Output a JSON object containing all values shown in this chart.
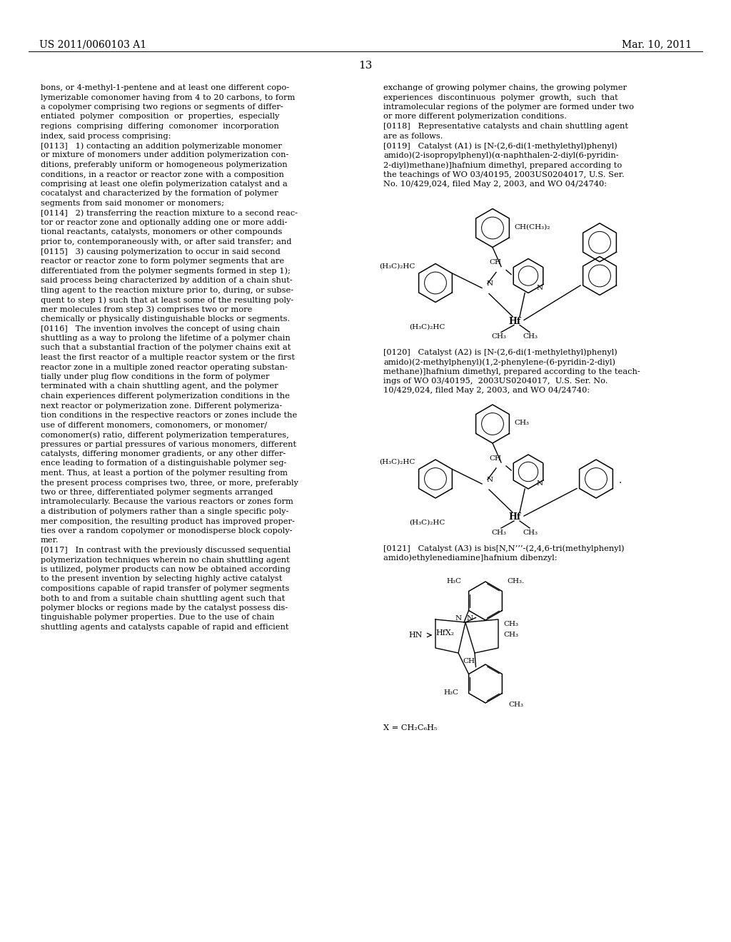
{
  "page_number": "13",
  "header_left": "US 2011/0060103 A1",
  "header_right": "Mar. 10, 2011",
  "background_color": "#ffffff",
  "left_column_lines": [
    "bons, or 4-methyl-1-pentene and at least one different copo-",
    "lymerizable comonomer having from 4 to 20 carbons, to form",
    "a copolymer comprising two regions or segments of differ-",
    "entiated  polymer  composition  or  properties,  especially",
    "regions  comprising  differing  comonomer  incorporation",
    "index, said process comprising:",
    "[0113]   1) contacting an addition polymerizable monomer",
    "or mixture of monomers under addition polymerization con-",
    "ditions, preferably uniform or homogeneous polymerization",
    "conditions, in a reactor or reactor zone with a composition",
    "comprising at least one olefin polymerization catalyst and a",
    "cocatalyst and characterized by the formation of polymer",
    "segments from said monomer or monomers;",
    "[0114]   2) transferring the reaction mixture to a second reac-",
    "tor or reactor zone and optionally adding one or more addi-",
    "tional reactants, catalysts, monomers or other compounds",
    "prior to, contemporaneously with, or after said transfer; and",
    "[0115]   3) causing polymerization to occur in said second",
    "reactor or reactor zone to form polymer segments that are",
    "differentiated from the polymer segments formed in step 1);",
    "said process being characterized by addition of a chain shut-",
    "tling agent to the reaction mixture prior to, during, or subse-",
    "quent to step 1) such that at least some of the resulting poly-",
    "mer molecules from step 3) comprises two or more",
    "chemically or physically distinguishable blocks or segments.",
    "[0116]   The invention involves the concept of using chain",
    "shuttling as a way to prolong the lifetime of a polymer chain",
    "such that a substantial fraction of the polymer chains exit at",
    "least the first reactor of a multiple reactor system or the first",
    "reactor zone in a multiple zoned reactor operating substan-",
    "tially under plug flow conditions in the form of polymer",
    "terminated with a chain shuttling agent, and the polymer",
    "chain experiences different polymerization conditions in the",
    "next reactor or polymerization zone. Different polymeriza-",
    "tion conditions in the respective reactors or zones include the",
    "use of different monomers, comonomers, or monomer/",
    "comonomer(s) ratio, different polymerization temperatures,",
    "pressures or partial pressures of various monomers, different",
    "catalysts, differing monomer gradients, or any other differ-",
    "ence leading to formation of a distinguishable polymer seg-",
    "ment. Thus, at least a portion of the polymer resulting from",
    "the present process comprises two, three, or more, preferably",
    "two or three, differentiated polymer segments arranged",
    "intramolecularly. Because the various reactors or zones form",
    "a distribution of polymers rather than a single specific poly-",
    "mer composition, the resulting product has improved proper-",
    "ties over a random copolymer or monodisperse block copoly-",
    "mer.",
    "[0117]   In contrast with the previously discussed sequential",
    "polymerization techniques wherein no chain shuttling agent",
    "is utilized, polymer products can now be obtained according",
    "to the present invention by selecting highly active catalyst",
    "compositions capable of rapid transfer of polymer segments",
    "both to and from a suitable chain shuttling agent such that",
    "polymer blocks or regions made by the catalyst possess dis-",
    "tinguishable polymer properties. Due to the use of chain",
    "shuttling agents and catalysts capable of rapid and efficient"
  ],
  "right_col_top_lines": [
    "exchange of growing polymer chains, the growing polymer",
    "experiences  discontinuous  polymer  growth,  such  that",
    "intramolecular regions of the polymer are formed under two",
    "or more different polymerization conditions.",
    "[0118]   Representative catalysts and chain shuttling agent",
    "are as follows.",
    "[0119]   Catalyst (A1) is [N-(2,6-di(1-methylethyl)phenyl)",
    "amido)(2-isopropylphenyl)(α-naphthalen-2-diyl(6-pyridin-",
    "2-diyl)methane)]hafnium dimethyl, prepared according to",
    "the teachings of WO 03/40195, 2003US0204017, U.S. Ser.",
    "No. 10/429,024, filed May 2, 2003, and WO 04/24740:"
  ],
  "right_col_a2_lines": [
    "[0120]   Catalyst (A2) is [N-(2,6-di(1-methylethyl)phenyl)",
    "amido)(2-methylphenyl)(1,2-phenylene-(6-pyridin-2-diyl)",
    "methane)]hafnium dimethyl, prepared according to the teach-",
    "ings of WO 03/40195,  2003US0204017,  U.S. Ser. No.",
    "10/429,024, filed May 2, 2003, and WO 04/24740:"
  ],
  "right_col_a3_lines": [
    "[0121]   Catalyst (A3) is bis[N,N’’’-(2,4,6-tri(methylphenyl)",
    "amido)ethylenediamine]hafnium dibenzyl:"
  ],
  "x_label": "X = CH₂C₆H₅"
}
